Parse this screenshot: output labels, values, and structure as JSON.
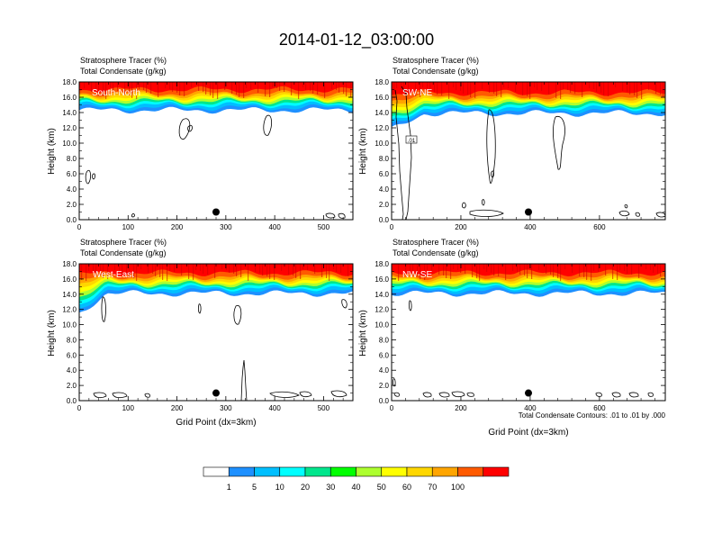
{
  "figure": {
    "title": "2014-01-12_03:00:00",
    "contour_note": "Total Condensate Contours: .01 to .01 by .000"
  },
  "colorbar": {
    "labels": [
      "1",
      "5",
      "10",
      "20",
      "30",
      "40",
      "50",
      "60",
      "70",
      "100"
    ],
    "colors": [
      "#ffffff",
      "#1e90ff",
      "#00bfff",
      "#00ffff",
      "#00e68c",
      "#00ff00",
      "#adff2f",
      "#ffff00",
      "#ffd700",
      "#ffa500",
      "#ff5a00",
      "#ff0000"
    ]
  },
  "chart_data": [
    {
      "type": "heatmap",
      "panel_label": "South-North",
      "header_line1": "Stratosphere Tracer   (%)",
      "header_line2": "Total Condensate   (g/kg)",
      "ylabel": "Height (km)",
      "xlabel": "",
      "xlim": [
        0,
        560
      ],
      "ylim": [
        0,
        18
      ],
      "xticks": [
        "0",
        "100",
        "200",
        "300",
        "400",
        "500"
      ],
      "yticks": [
        "0.0",
        "2.0",
        "4.0",
        "6.0",
        "8.0",
        "10.0",
        "12.0",
        "14.0",
        "16.0",
        "18.0"
      ],
      "tracer_base_km": 15.0,
      "marker_x": 280,
      "marker_height_km": 1.0
    },
    {
      "type": "heatmap",
      "panel_label": "SW-NE",
      "header_line1": "Stratosphere Tracer   (%)",
      "header_line2": "Total Condensate   (g/kg)",
      "ylabel": "Height (km)",
      "xlabel": "",
      "xlim": [
        0,
        790
      ],
      "ylim": [
        0,
        18
      ],
      "xticks": [
        "0",
        "200",
        "400",
        "600"
      ],
      "yticks": [
        "0.0",
        "2.0",
        "4.0",
        "6.0",
        "8.0",
        "10.0",
        "12.0",
        "14.0",
        "16.0",
        "18.0"
      ],
      "contour_label": ".01",
      "tracer_base_km": 14.6,
      "marker_x": 395,
      "marker_height_km": 1.0
    },
    {
      "type": "heatmap",
      "panel_label": "West-East",
      "header_line1": "Stratosphere Tracer   (%)",
      "header_line2": "Total Condensate   (g/kg)",
      "ylabel": "Height (km)",
      "xlabel": "Grid Point (dx=3km)",
      "xlim": [
        0,
        560
      ],
      "ylim": [
        0,
        18
      ],
      "xticks": [
        "0",
        "100",
        "200",
        "300",
        "400",
        "500"
      ],
      "yticks": [
        "0.0",
        "2.0",
        "4.0",
        "6.0",
        "8.0",
        "10.0",
        "12.0",
        "14.0",
        "16.0",
        "18.0"
      ],
      "tracer_base_km": 14.8,
      "marker_x": 280,
      "marker_height_km": 1.0
    },
    {
      "type": "heatmap",
      "panel_label": "NW-SE",
      "header_line1": "Stratosphere Tracer   (%)",
      "header_line2": "Total Condensate   (g/kg)",
      "ylabel": "Height (km)",
      "xlabel": "Grid Point (dx=3km)",
      "xlim": [
        0,
        790
      ],
      "ylim": [
        0,
        18
      ],
      "xticks": [
        "0",
        "200",
        "400",
        "600"
      ],
      "yticks": [
        "0.0",
        "2.0",
        "4.0",
        "6.0",
        "8.0",
        "10.0",
        "12.0",
        "14.0",
        "16.0",
        "18.0"
      ],
      "tracer_base_km": 14.8,
      "marker_x": 395,
      "marker_height_km": 1.0
    }
  ]
}
